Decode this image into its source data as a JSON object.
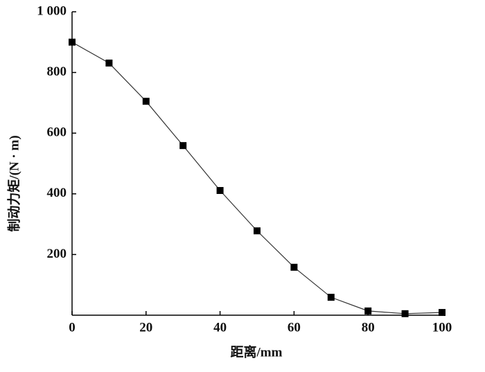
{
  "chart_data": {
    "type": "line",
    "x_label": "距离/mm",
    "y_label": "制动力矩/(N · m)",
    "x": [
      0,
      10,
      20,
      30,
      40,
      50,
      60,
      70,
      80,
      90,
      100
    ],
    "series": [
      {
        "color": "#000000",
        "values": [
          900,
          831,
          705,
          559,
          411,
          278,
          158,
          59,
          14,
          5,
          9
        ]
      }
    ],
    "xlim": [
      0,
      100
    ],
    "xticks": [
      0,
      20,
      40,
      60,
      80,
      100
    ],
    "ylim": [
      0,
      1000
    ],
    "yticks": [
      200,
      400,
      600,
      800,
      {
        "value": 1000,
        "label": "1 000"
      }
    ],
    "grid": false
  }
}
